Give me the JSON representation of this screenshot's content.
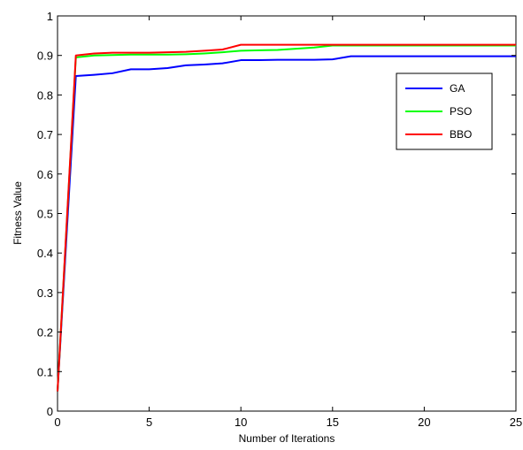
{
  "chart_data": {
    "type": "line",
    "title": "",
    "xlabel": "Number of Iterations",
    "ylabel": "Fitness Value",
    "xlim": [
      0,
      25
    ],
    "ylim": [
      0,
      1
    ],
    "x_ticks": [
      0,
      5,
      10,
      15,
      20,
      25
    ],
    "y_ticks": [
      0,
      0.1,
      0.2,
      0.3,
      0.4,
      0.5,
      0.6,
      0.7,
      0.8,
      0.9,
      1
    ],
    "grid": false,
    "legend_position": "upper-right",
    "series": [
      {
        "name": "GA",
        "color": "#0000ff",
        "x": [
          0,
          1,
          2,
          3,
          4,
          5,
          6,
          7,
          8,
          9,
          10,
          11,
          12,
          13,
          14,
          15,
          16,
          17,
          18,
          19,
          20,
          21,
          22,
          23,
          24,
          25
        ],
        "y": [
          0.05,
          0.848,
          0.851,
          0.855,
          0.865,
          0.865,
          0.868,
          0.875,
          0.877,
          0.88,
          0.888,
          0.888,
          0.889,
          0.889,
          0.889,
          0.89,
          0.898,
          0.898,
          0.898,
          0.898,
          0.898,
          0.898,
          0.898,
          0.898,
          0.898,
          0.898
        ]
      },
      {
        "name": "PSO",
        "color": "#00ff00",
        "x": [
          0,
          1,
          2,
          3,
          4,
          5,
          6,
          7,
          8,
          9,
          10,
          11,
          12,
          13,
          14,
          15,
          16,
          17,
          18,
          19,
          20,
          21,
          22,
          23,
          24,
          25
        ],
        "y": [
          0.05,
          0.895,
          0.9,
          0.901,
          0.902,
          0.902,
          0.902,
          0.903,
          0.905,
          0.908,
          0.912,
          0.913,
          0.914,
          0.917,
          0.92,
          0.925,
          0.925,
          0.925,
          0.925,
          0.925,
          0.925,
          0.925,
          0.925,
          0.925,
          0.925,
          0.925
        ]
      },
      {
        "name": "BBO",
        "color": "#ff0000",
        "x": [
          0,
          1,
          2,
          3,
          4,
          5,
          6,
          7,
          8,
          9,
          10,
          11,
          12,
          13,
          14,
          15,
          16,
          17,
          18,
          19,
          20,
          21,
          22,
          23,
          24,
          25
        ],
        "y": [
          0.05,
          0.9,
          0.905,
          0.907,
          0.907,
          0.907,
          0.908,
          0.909,
          0.912,
          0.915,
          0.927,
          0.927,
          0.927,
          0.927,
          0.927,
          0.927,
          0.927,
          0.927,
          0.927,
          0.927,
          0.927,
          0.927,
          0.927,
          0.927,
          0.927,
          0.927
        ]
      }
    ]
  }
}
